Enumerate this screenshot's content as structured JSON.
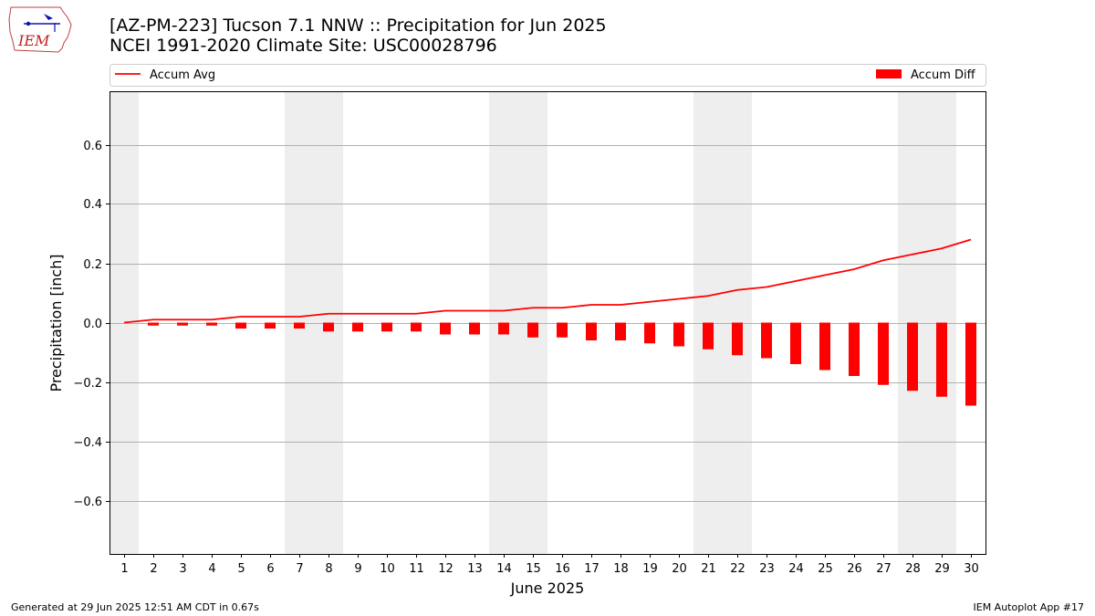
{
  "header": {
    "title": "[AZ-PM-223] Tucson 7.1 NNW :: Precipitation for Jun 2025",
    "subtitle": "NCEI 1991-2020 Climate Site: USC00028796"
  },
  "logo": {
    "text": "IEM",
    "icon": "iem-iowa-logo"
  },
  "footer": {
    "left": "Generated at 29 Jun 2025 12:51 AM CDT in 0.67s",
    "right": "IEM Autoplot App #17"
  },
  "colors": {
    "line": "#ff0000",
    "bar": "#ff0000",
    "weekend_band": "#eeeeee",
    "grid": "#b0b0b0"
  },
  "chart_data": {
    "type": "bar",
    "xlabel": "June 2025",
    "ylabel": "Precipitation [inch]",
    "ylim": [
      -0.78,
      0.78
    ],
    "xlim": [
      0.5,
      30.5
    ],
    "yticks": [
      -0.6,
      -0.4,
      -0.2,
      0.0,
      0.2,
      0.4,
      0.6
    ],
    "ytick_labels": [
      "−0.6",
      "−0.4",
      "−0.2",
      "0.0",
      "0.2",
      "0.4",
      "0.6"
    ],
    "grid": "horizontal",
    "legend": "top",
    "categories": [
      "1",
      "2",
      "3",
      "4",
      "5",
      "6",
      "7",
      "8",
      "9",
      "10",
      "11",
      "12",
      "13",
      "14",
      "15",
      "16",
      "17",
      "18",
      "19",
      "20",
      "21",
      "22",
      "23",
      "24",
      "25",
      "26",
      "27",
      "28",
      "29",
      "30"
    ],
    "shaded_days": [
      [
        0.5,
        1.5
      ],
      [
        6.5,
        8.5
      ],
      [
        13.5,
        15.5
      ],
      [
        20.5,
        22.5
      ],
      [
        27.5,
        29.5
      ]
    ],
    "series": [
      {
        "name": "Accum Avg",
        "kind": "line",
        "values": [
          0.0,
          0.01,
          0.01,
          0.01,
          0.02,
          0.02,
          0.02,
          0.03,
          0.03,
          0.03,
          0.03,
          0.04,
          0.04,
          0.04,
          0.05,
          0.05,
          0.06,
          0.06,
          0.07,
          0.08,
          0.09,
          0.11,
          0.12,
          0.14,
          0.16,
          0.18,
          0.21,
          0.23,
          0.25,
          0.28
        ]
      },
      {
        "name": "Accum Diff",
        "kind": "bar",
        "values": [
          0.0,
          -0.01,
          -0.01,
          -0.01,
          -0.02,
          -0.02,
          -0.02,
          -0.03,
          -0.03,
          -0.03,
          -0.03,
          -0.04,
          -0.04,
          -0.04,
          -0.05,
          -0.05,
          -0.06,
          -0.06,
          -0.07,
          -0.08,
          -0.09,
          -0.11,
          -0.12,
          -0.14,
          -0.16,
          -0.18,
          -0.21,
          -0.23,
          -0.25,
          -0.28
        ]
      }
    ]
  }
}
